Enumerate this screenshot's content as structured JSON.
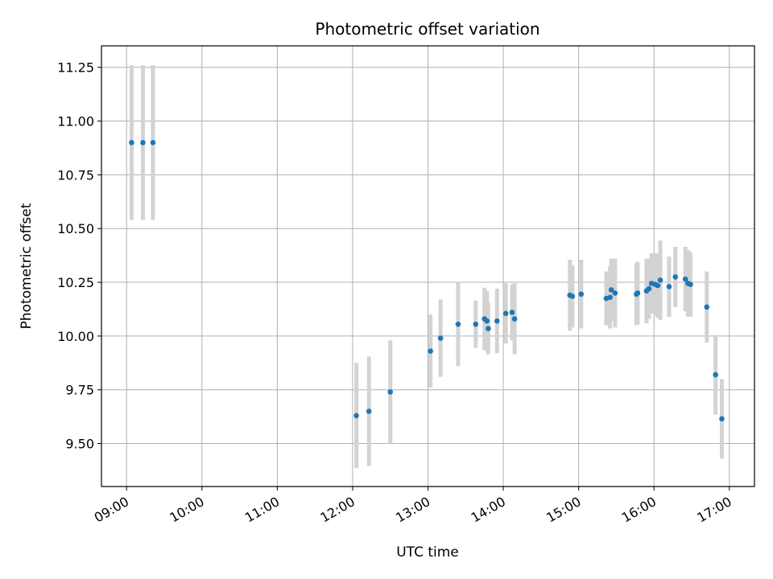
{
  "chart_data": {
    "type": "scatter",
    "title": "Photometric offset variation",
    "xlabel": "UTC time",
    "ylabel": "Photometric offset",
    "x_ticks": [
      "09:00",
      "10:00",
      "11:00",
      "12:00",
      "13:00",
      "14:00",
      "15:00",
      "16:00",
      "17:00"
    ],
    "y_ticks": [
      "9.50",
      "9.75",
      "10.00",
      "10.25",
      "10.50",
      "10.75",
      "11.00",
      "11.25"
    ],
    "xlim": [
      "08:40",
      "17:20"
    ],
    "ylim": [
      9.3,
      11.35
    ],
    "grid": true,
    "colors": {
      "point": "#1f77b4",
      "errorbar": "#d3d3d3",
      "grid": "#b0b0b0"
    },
    "points": [
      {
        "x": "09:04",
        "y": 10.9,
        "err": 0.36
      },
      {
        "x": "09:13",
        "y": 10.9,
        "err": 0.36
      },
      {
        "x": "09:21",
        "y": 10.9,
        "err": 0.36
      },
      {
        "x": "12:03",
        "y": 9.63,
        "err": 0.245
      },
      {
        "x": "12:13",
        "y": 9.65,
        "err": 0.255
      },
      {
        "x": "12:30",
        "y": 9.74,
        "err": 0.24
      },
      {
        "x": "13:02",
        "y": 9.93,
        "err": 0.17
      },
      {
        "x": "13:10",
        "y": 9.99,
        "err": 0.18
      },
      {
        "x": "13:24",
        "y": 10.055,
        "err": 0.195
      },
      {
        "x": "13:38",
        "y": 10.055,
        "err": 0.11
      },
      {
        "x": "13:45",
        "y": 10.08,
        "err": 0.145
      },
      {
        "x": "13:47",
        "y": 10.07,
        "err": 0.14
      },
      {
        "x": "13:48",
        "y": 10.035,
        "err": 0.12
      },
      {
        "x": "13:55",
        "y": 10.07,
        "err": 0.15
      },
      {
        "x": "14:02",
        "y": 10.105,
        "err": 0.14
      },
      {
        "x": "14:07",
        "y": 10.11,
        "err": 0.13
      },
      {
        "x": "14:09",
        "y": 10.08,
        "err": 0.165
      },
      {
        "x": "14:53",
        "y": 10.19,
        "err": 0.165
      },
      {
        "x": "14:55",
        "y": 10.185,
        "err": 0.145
      },
      {
        "x": "15:02",
        "y": 10.195,
        "err": 0.16
      },
      {
        "x": "15:22",
        "y": 10.175,
        "err": 0.125
      },
      {
        "x": "15:25",
        "y": 10.18,
        "err": 0.145
      },
      {
        "x": "15:26",
        "y": 10.215,
        "err": 0.145
      },
      {
        "x": "15:29",
        "y": 10.2,
        "err": 0.16
      },
      {
        "x": "15:46",
        "y": 10.195,
        "err": 0.145
      },
      {
        "x": "15:47",
        "y": 10.2,
        "err": 0.145
      },
      {
        "x": "15:54",
        "y": 10.21,
        "err": 0.15
      },
      {
        "x": "15:56",
        "y": 10.22,
        "err": 0.14
      },
      {
        "x": "15:58",
        "y": 10.245,
        "err": 0.14
      },
      {
        "x": "16:01",
        "y": 10.24,
        "err": 0.145
      },
      {
        "x": "16:03",
        "y": 10.235,
        "err": 0.15
      },
      {
        "x": "16:05",
        "y": 10.26,
        "err": 0.185
      },
      {
        "x": "16:12",
        "y": 10.23,
        "err": 0.14
      },
      {
        "x": "16:17",
        "y": 10.275,
        "err": 0.14
      },
      {
        "x": "16:25",
        "y": 10.265,
        "err": 0.15
      },
      {
        "x": "16:27",
        "y": 10.245,
        "err": 0.155
      },
      {
        "x": "16:29",
        "y": 10.24,
        "err": 0.15
      },
      {
        "x": "16:42",
        "y": 10.135,
        "err": 0.165
      },
      {
        "x": "16:49",
        "y": 9.82,
        "err": 0.185
      },
      {
        "x": "16:54",
        "y": 9.615,
        "err": 0.185
      }
    ]
  }
}
